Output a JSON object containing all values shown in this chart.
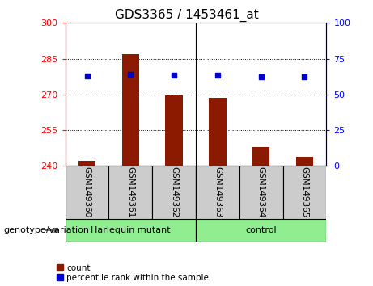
{
  "title": "GDS3365 / 1453461_at",
  "samples": [
    "GSM149360",
    "GSM149361",
    "GSM149362",
    "GSM149363",
    "GSM149364",
    "GSM149365"
  ],
  "count_values": [
    242,
    287,
    269.5,
    268.5,
    248,
    244
  ],
  "percentile_values": [
    63,
    64,
    63.5,
    63.5,
    62.5,
    62.5
  ],
  "ylim_left": [
    240,
    300
  ],
  "ylim_right": [
    0,
    100
  ],
  "yticks_left": [
    240,
    255,
    270,
    285,
    300
  ],
  "yticks_right": [
    0,
    25,
    50,
    75,
    100
  ],
  "bar_color": "#8B1A00",
  "dot_color": "#0000CD",
  "bar_bottom": 240,
  "grid_lines": [
    255,
    270,
    285
  ],
  "group_split": 2.5,
  "harlequin_label": "Harlequin mutant",
  "control_label": "control",
  "gray_cell_color": "#CCCCCC",
  "green_color": "#90EE90",
  "group_label_text": "genotype/variation",
  "legend_count_label": "count",
  "legend_pct_label": "percentile rank within the sample",
  "title_fontsize": 11,
  "tick_fontsize": 8,
  "bar_width": 0.4,
  "dot_size": 16,
  "left_axis_color": "red",
  "right_axis_color": "blue"
}
